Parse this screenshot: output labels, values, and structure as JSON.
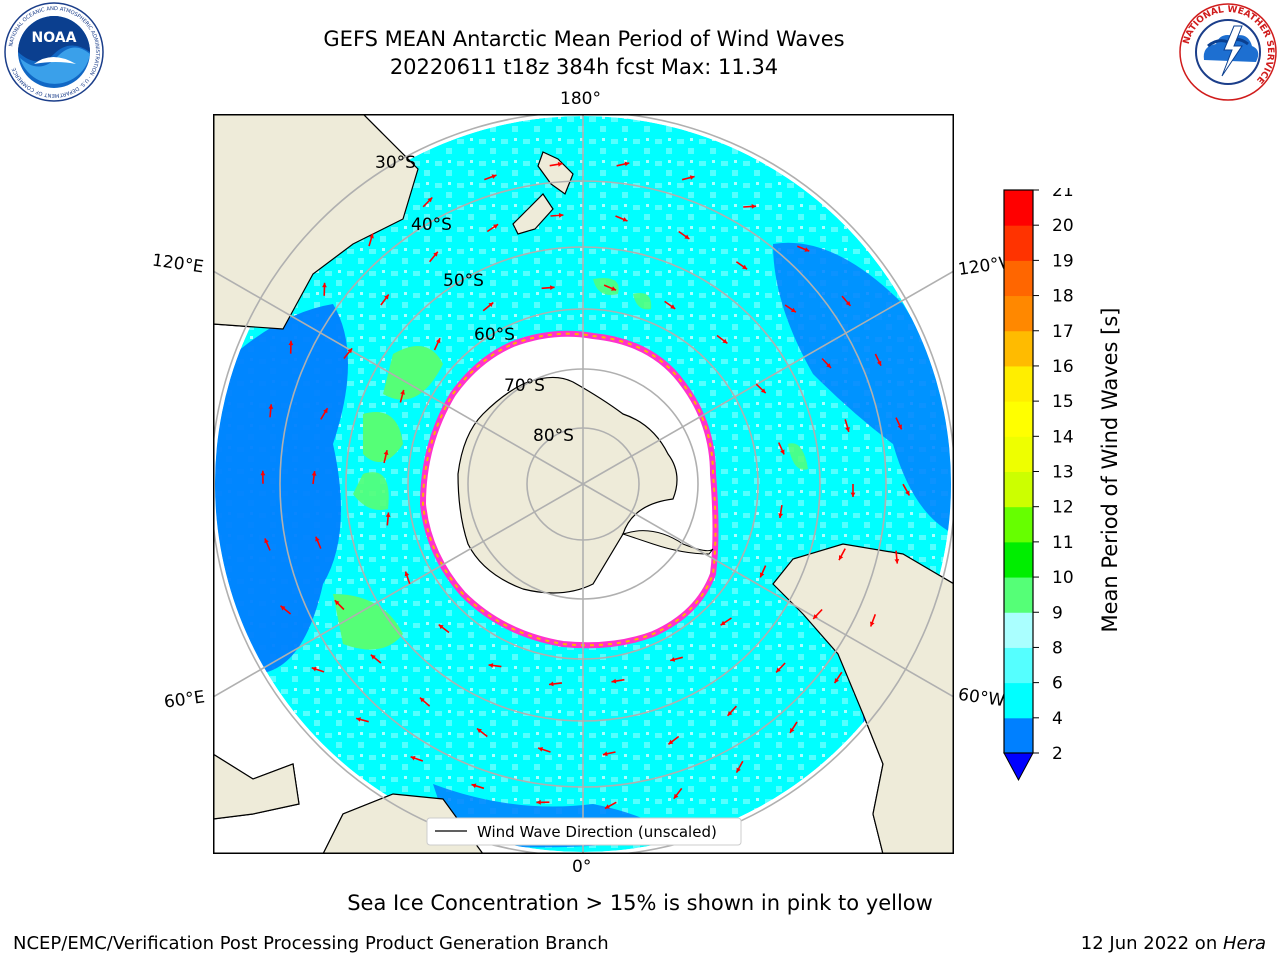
{
  "header": {
    "title_line1": "GEFS MEAN Antarctic Mean Period of Wind Waves",
    "title_line2": "20220611 t18z 384h fcst   Max: 11.34"
  },
  "logos": {
    "noaa": {
      "text": "NOAA",
      "ring_text": "NATIONAL OCEANIC AND ATMOSPHERIC ADMINISTRATION · U.S. DEPARTMENT OF COMMERCE"
    },
    "nws": {
      "ring_text": "NATIONAL WEATHER SERVICE"
    }
  },
  "map": {
    "projection": "south polar stereographic",
    "lon_labels": {
      "top": "180°",
      "bottom": "0°",
      "upper_left": "120°E",
      "upper_right": "120°W",
      "lower_left": "60°E",
      "lower_right": "60°W"
    },
    "lat_labels": [
      "30°S",
      "40°S",
      "50°S",
      "60°S",
      "70°S",
      "80°S"
    ],
    "legend": {
      "label": "Wind Wave Direction (unscaled)"
    },
    "colors": {
      "land": "#eeebd9",
      "ocean_low": "#0080ff",
      "ocean_mid": "#00ffff",
      "ocean_high": "#55ff55",
      "ice_edge": "#ff33cc",
      "ice_inner": "#ffb400",
      "arrows": "#ff0000",
      "grid": "#b0b0b0"
    }
  },
  "colorbar": {
    "label": "Mean Period of Wind Waves [s]",
    "ticks": [
      "2",
      "4",
      "6",
      "8",
      "9",
      "10",
      "11",
      "12",
      "13",
      "14",
      "15",
      "16",
      "17",
      "18",
      "19",
      "20",
      "21"
    ],
    "levels": [
      2,
      4,
      6,
      8,
      9,
      10,
      11,
      12,
      13,
      14,
      15,
      16,
      17,
      18,
      19,
      20,
      21
    ],
    "colors": [
      "#0080ff",
      "#00ffff",
      "#55ffff",
      "#aaffff",
      "#55ff77",
      "#00ee00",
      "#66ff00",
      "#ccff00",
      "#eeff00",
      "#ffff00",
      "#ffee00",
      "#ffbb00",
      "#ff8800",
      "#ff6600",
      "#ff3300",
      "#ff0000"
    ],
    "under_color": "#0000ff"
  },
  "footer": {
    "ice_note": "Sea Ice Concentration > 15% is shown in pink to yellow",
    "left": "NCEP/EMC/Verification Post Processing Product Generation Branch",
    "right_date": "12 Jun 2022 on ",
    "right_host": "Hera"
  }
}
